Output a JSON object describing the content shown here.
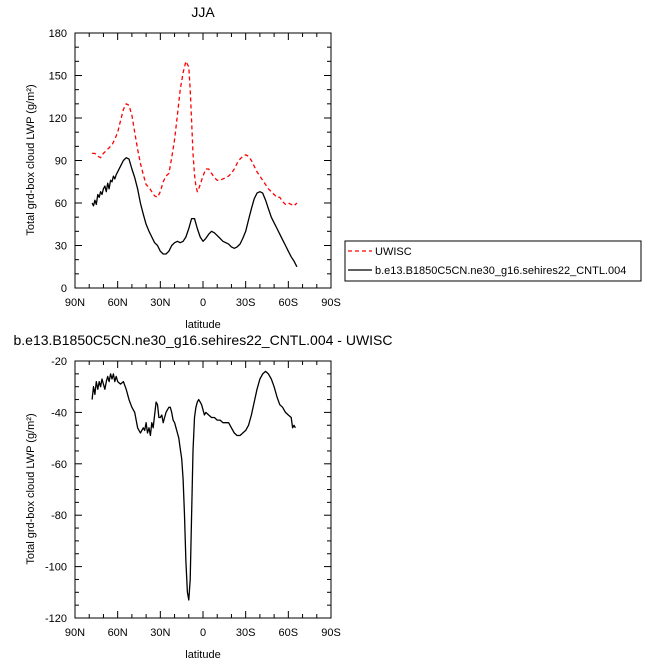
{
  "chart_data": [
    {
      "type": "line",
      "title": "JJA",
      "xlabel": "latitude",
      "ylabel": "Total grd-box cloud LWP (g/m²)",
      "xlim": [
        90,
        -90
      ],
      "ylim": [
        0,
        180
      ],
      "x_ticks": [
        90,
        60,
        30,
        0,
        -30,
        -60,
        -90
      ],
      "x_tick_labels": [
        "90N",
        "60N",
        "30N",
        "0",
        "30S",
        "60S",
        "90S"
      ],
      "y_ticks": [
        0,
        30,
        60,
        90,
        120,
        150,
        180
      ],
      "y_tick_labels": [
        "0",
        "30",
        "60",
        "90",
        "120",
        "150",
        "180"
      ],
      "legend_position": "right",
      "series": [
        {
          "name": "UWISC",
          "color": "#ff0000",
          "dash": "dashed",
          "x": [
            78,
            76,
            74,
            72,
            70,
            68,
            66,
            64,
            62,
            60,
            58,
            56,
            54,
            52,
            50,
            48,
            46,
            44,
            42,
            40,
            38,
            36,
            34,
            32,
            30,
            28,
            26,
            24,
            22,
            20,
            18,
            16,
            14,
            12,
            10,
            9,
            8,
            7,
            6,
            5,
            4,
            3,
            2,
            1,
            0,
            -2,
            -4,
            -6,
            -8,
            -10,
            -12,
            -14,
            -16,
            -18,
            -20,
            -22,
            -24,
            -26,
            -28,
            -30,
            -32,
            -34,
            -36,
            -38,
            -40,
            -42,
            -44,
            -46,
            -48,
            -50,
            -52,
            -54,
            -56,
            -58,
            -60,
            -62,
            -64,
            -66
          ],
          "values": [
            95,
            95,
            93,
            92,
            95,
            97,
            99,
            101,
            105,
            110,
            118,
            126,
            130,
            129,
            122,
            110,
            98,
            88,
            80,
            73,
            71,
            68,
            65,
            64,
            68,
            75,
            79,
            81,
            92,
            105,
            122,
            140,
            152,
            160,
            156,
            140,
            118,
            95,
            80,
            72,
            68,
            70,
            73,
            76,
            79,
            84,
            84,
            81,
            78,
            76,
            76,
            77,
            78,
            79,
            81,
            84,
            88,
            91,
            93,
            94,
            93,
            90,
            86,
            82,
            79,
            76,
            73,
            70,
            68,
            66,
            64,
            64,
            61,
            59,
            60,
            59,
            58,
            60
          ]
        },
        {
          "name": "b.e13.B1850C5CN.ne30_g16.sehires22_CNTL.004",
          "color": "#000000",
          "dash": "solid",
          "x": [
            78,
            77,
            76,
            75,
            74,
            73,
            72,
            71,
            70,
            69,
            68,
            67,
            66,
            65,
            64,
            63,
            62,
            61,
            60,
            58,
            56,
            54,
            52,
            50,
            48,
            46,
            44,
            42,
            40,
            38,
            36,
            34,
            32,
            30,
            28,
            26,
            24,
            22,
            20,
            18,
            16,
            14,
            12,
            10,
            8,
            6,
            4,
            2,
            0,
            -2,
            -4,
            -6,
            -8,
            -10,
            -12,
            -14,
            -16,
            -18,
            -20,
            -22,
            -24,
            -26,
            -28,
            -30,
            -32,
            -34,
            -36,
            -38,
            -40,
            -42,
            -44,
            -46,
            -48,
            -50,
            -52,
            -54,
            -56,
            -58,
            -60,
            -62,
            -64,
            -66
          ],
          "values": [
            60,
            58,
            62,
            59,
            66,
            64,
            68,
            66,
            70,
            72,
            68,
            74,
            70,
            76,
            75,
            79,
            77,
            80,
            82,
            86,
            90,
            92,
            91,
            84,
            78,
            70,
            60,
            52,
            45,
            40,
            36,
            32,
            30,
            26,
            24,
            24,
            26,
            30,
            32,
            33,
            32,
            33,
            36,
            42,
            49,
            49,
            42,
            36,
            33,
            35,
            38,
            40,
            39,
            37,
            35,
            33,
            32,
            31,
            29,
            28,
            29,
            31,
            35,
            40,
            48,
            56,
            63,
            67,
            68,
            67,
            62,
            56,
            50,
            46,
            42,
            38,
            34,
            30,
            26,
            22,
            19,
            15
          ]
        }
      ]
    },
    {
      "type": "line",
      "title": "b.e13.B1850C5CN.ne30_g16.sehires22_CNTL.004 - UWISC",
      "xlabel": "latitude",
      "ylabel": "Total grd-box cloud LWP (g/m²)",
      "xlim": [
        90,
        -90
      ],
      "ylim": [
        -120,
        -20
      ],
      "x_ticks": [
        90,
        60,
        30,
        0,
        -30,
        -60,
        -90
      ],
      "x_tick_labels": [
        "90N",
        "60N",
        "30N",
        "0",
        "30S",
        "60S",
        "90S"
      ],
      "y_ticks": [
        -120,
        -100,
        -80,
        -60,
        -40,
        -20
      ],
      "y_tick_labels": [
        "-120",
        "-100",
        "-80",
        "-60",
        "-40",
        "-20"
      ],
      "series": [
        {
          "name": "",
          "color": "#000000",
          "dash": "solid",
          "x": [
            78,
            77,
            76,
            75,
            74,
            73,
            72,
            71,
            70,
            69,
            68,
            67,
            66,
            65,
            64,
            63,
            62,
            61,
            60,
            58,
            56,
            54,
            52,
            50,
            48,
            46,
            44,
            42,
            41,
            40,
            39,
            38,
            37,
            36,
            35,
            34,
            33,
            32,
            31,
            30,
            29,
            28,
            27,
            26,
            25,
            24,
            23,
            22,
            21,
            20,
            19,
            18,
            17,
            16,
            15,
            14,
            13,
            12,
            11,
            10,
            9,
            8,
            7,
            6,
            5,
            4,
            3,
            2,
            1,
            0,
            -1,
            -2,
            -4,
            -6,
            -8,
            -10,
            -12,
            -14,
            -16,
            -18,
            -20,
            -22,
            -24,
            -26,
            -28,
            -30,
            -32,
            -34,
            -36,
            -38,
            -40,
            -42,
            -44,
            -46,
            -48,
            -50,
            -52,
            -54,
            -56,
            -58,
            -60,
            -62,
            -63,
            -64,
            -65
          ],
          "values": [
            -35,
            -30,
            -33,
            -28,
            -31,
            -28,
            -30,
            -27,
            -29,
            -31,
            -28,
            -26,
            -28,
            -25,
            -27,
            -25,
            -28,
            -26,
            -28,
            -29,
            -28,
            -31,
            -35,
            -38,
            -40,
            -46,
            -48,
            -46,
            -47,
            -44,
            -48,
            -46,
            -49,
            -44,
            -46,
            -41,
            -36,
            -37,
            -42,
            -42,
            -41,
            -44,
            -42,
            -40,
            -39,
            -38,
            -38,
            -40,
            -43,
            -44,
            -46,
            -48,
            -50,
            -54,
            -58,
            -66,
            -80,
            -98,
            -110,
            -113,
            -105,
            -80,
            -55,
            -42,
            -38,
            -36,
            -35,
            -36,
            -37,
            -39,
            -41,
            -40,
            -41,
            -42,
            -42,
            -43,
            -43,
            -44,
            -44,
            -44,
            -46,
            -48,
            -49,
            -49,
            -48,
            -47,
            -45,
            -41,
            -36,
            -31,
            -27,
            -25,
            -24,
            -25,
            -27,
            -30,
            -34,
            -37,
            -38,
            -40,
            -41,
            -42,
            -46,
            -45,
            -46
          ]
        }
      ]
    }
  ]
}
